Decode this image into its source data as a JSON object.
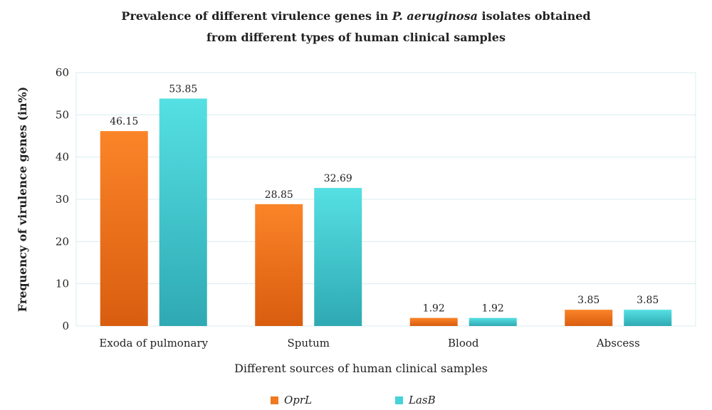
{
  "chart_data": {
    "type": "bar",
    "title_line1_pre": "Prevalence of different virulence genes in ",
    "title_line1_italic": "P. aeruginosa",
    "title_line1_post": " isolates obtained",
    "title_line2": "from different types of human clinical samples",
    "xlabel": "Different sources of human clinical samples",
    "ylabel": "Frequency of virulence genes (in%)",
    "ylim": [
      0,
      60
    ],
    "yticks": [
      0,
      10,
      20,
      30,
      40,
      50,
      60
    ],
    "categories": [
      "Exoda of pulmonary",
      "Sputum",
      "Blood",
      "Abscess"
    ],
    "series": [
      {
        "name": "OprL",
        "values": [
          46.15,
          28.85,
          1.92,
          3.85
        ],
        "labels": [
          "46.15",
          "28.85",
          "1.92",
          "3.85"
        ],
        "color": "#f07a1f"
      },
      {
        "name": "LasB",
        "values": [
          53.85,
          32.69,
          1.92,
          3.85
        ],
        "labels": [
          "53.85",
          "32.69",
          "1.92",
          "3.85"
        ],
        "color": "#45d3d8"
      }
    ],
    "grid": true,
    "legend_position": "bottom"
  }
}
